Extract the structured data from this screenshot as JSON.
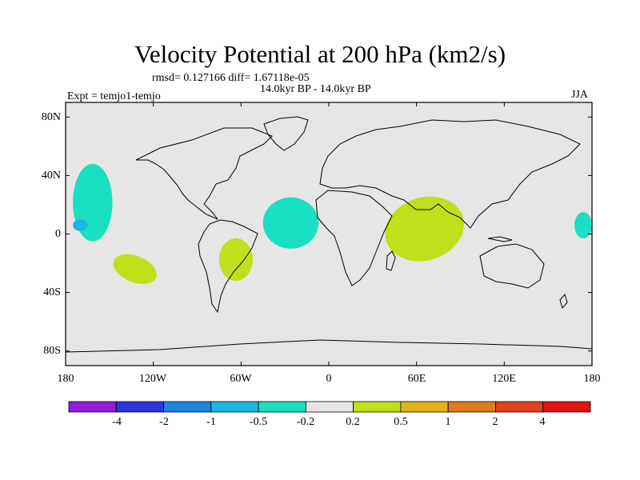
{
  "figure": {
    "title": "Velocity Potential at 200 hPa (km2/s)",
    "stats": "rmsd= 0.127166 diff= 1.67118e-05",
    "period": "14.0kyr BP - 14.0kyr BP",
    "experiment": "Expt = temjo1-temjo",
    "season": "JJA"
  },
  "axes": {
    "lat_labels": [
      "80N",
      "40N",
      "0",
      "40S",
      "80S"
    ],
    "lon_labels": [
      "180",
      "120W",
      "60W",
      "0",
      "60E",
      "120E",
      "180"
    ]
  },
  "colorbar": {
    "colors": [
      "#8a1ed9",
      "#2b34e0",
      "#1a84e0",
      "#1ab8e0",
      "#19e0c0",
      "#e6e6e6",
      "#bfe01a",
      "#e0b41a",
      "#e07a1a",
      "#e0421a",
      "#e01212"
    ],
    "labels": [
      "-4",
      "-2",
      "-1",
      "-0.5",
      "-0.2",
      "0.2",
      "0.5",
      "1",
      "2",
      "4"
    ]
  },
  "map_colors": {
    "background": "#e6e6e6",
    "negative": "#19e0c0",
    "negative_strong": "#1ab8e0",
    "positive": "#bfe01a"
  },
  "chart_data": {
    "type": "map",
    "projection": "cylindrical equidistant",
    "lon_range": [
      -180,
      180
    ],
    "lat_range": [
      -90,
      90
    ],
    "variable": "Velocity Potential at 200 hPa",
    "units": "km2/s",
    "contour_levels": [
      -4,
      -2,
      -1,
      -0.5,
      -0.2,
      0.2,
      0.5,
      1,
      2,
      4
    ],
    "anomaly_regions": [
      {
        "name": "central-north-pacific",
        "sign": "negative",
        "category": "-0.5 to -0.2",
        "lon_range": [
          -175,
          -148
        ],
        "lat_range": [
          -5,
          48
        ]
      },
      {
        "name": "central-north-pacific-core",
        "sign": "negative",
        "category": "-1 to -0.5",
        "lon_range": [
          -175,
          -165
        ],
        "lat_range": [
          2,
          10
        ]
      },
      {
        "name": "tropical-atlantic",
        "sign": "negative",
        "category": "-0.5 to -0.2",
        "lon_range": [
          -45,
          -7
        ],
        "lat_range": [
          -10,
          25
        ]
      },
      {
        "name": "western-pacific-dateline",
        "sign": "negative",
        "category": "-0.5 to -0.2",
        "lon_range": [
          168,
          180
        ],
        "lat_range": [
          -3,
          15
        ]
      },
      {
        "name": "south-pacific",
        "sign": "positive",
        "category": "0.2 to 0.5",
        "lon_range": [
          -148,
          -117
        ],
        "lat_range": [
          -33,
          -15
        ]
      },
      {
        "name": "south-america",
        "sign": "positive",
        "category": "0.2 to 0.5",
        "lon_range": [
          -75,
          -52
        ],
        "lat_range": [
          -32,
          -3
        ]
      },
      {
        "name": "indian-ocean",
        "sign": "positive",
        "category": "0.2 to 0.5",
        "lon_range": [
          38,
          93
        ],
        "lat_range": [
          -18,
          25
        ]
      }
    ]
  }
}
